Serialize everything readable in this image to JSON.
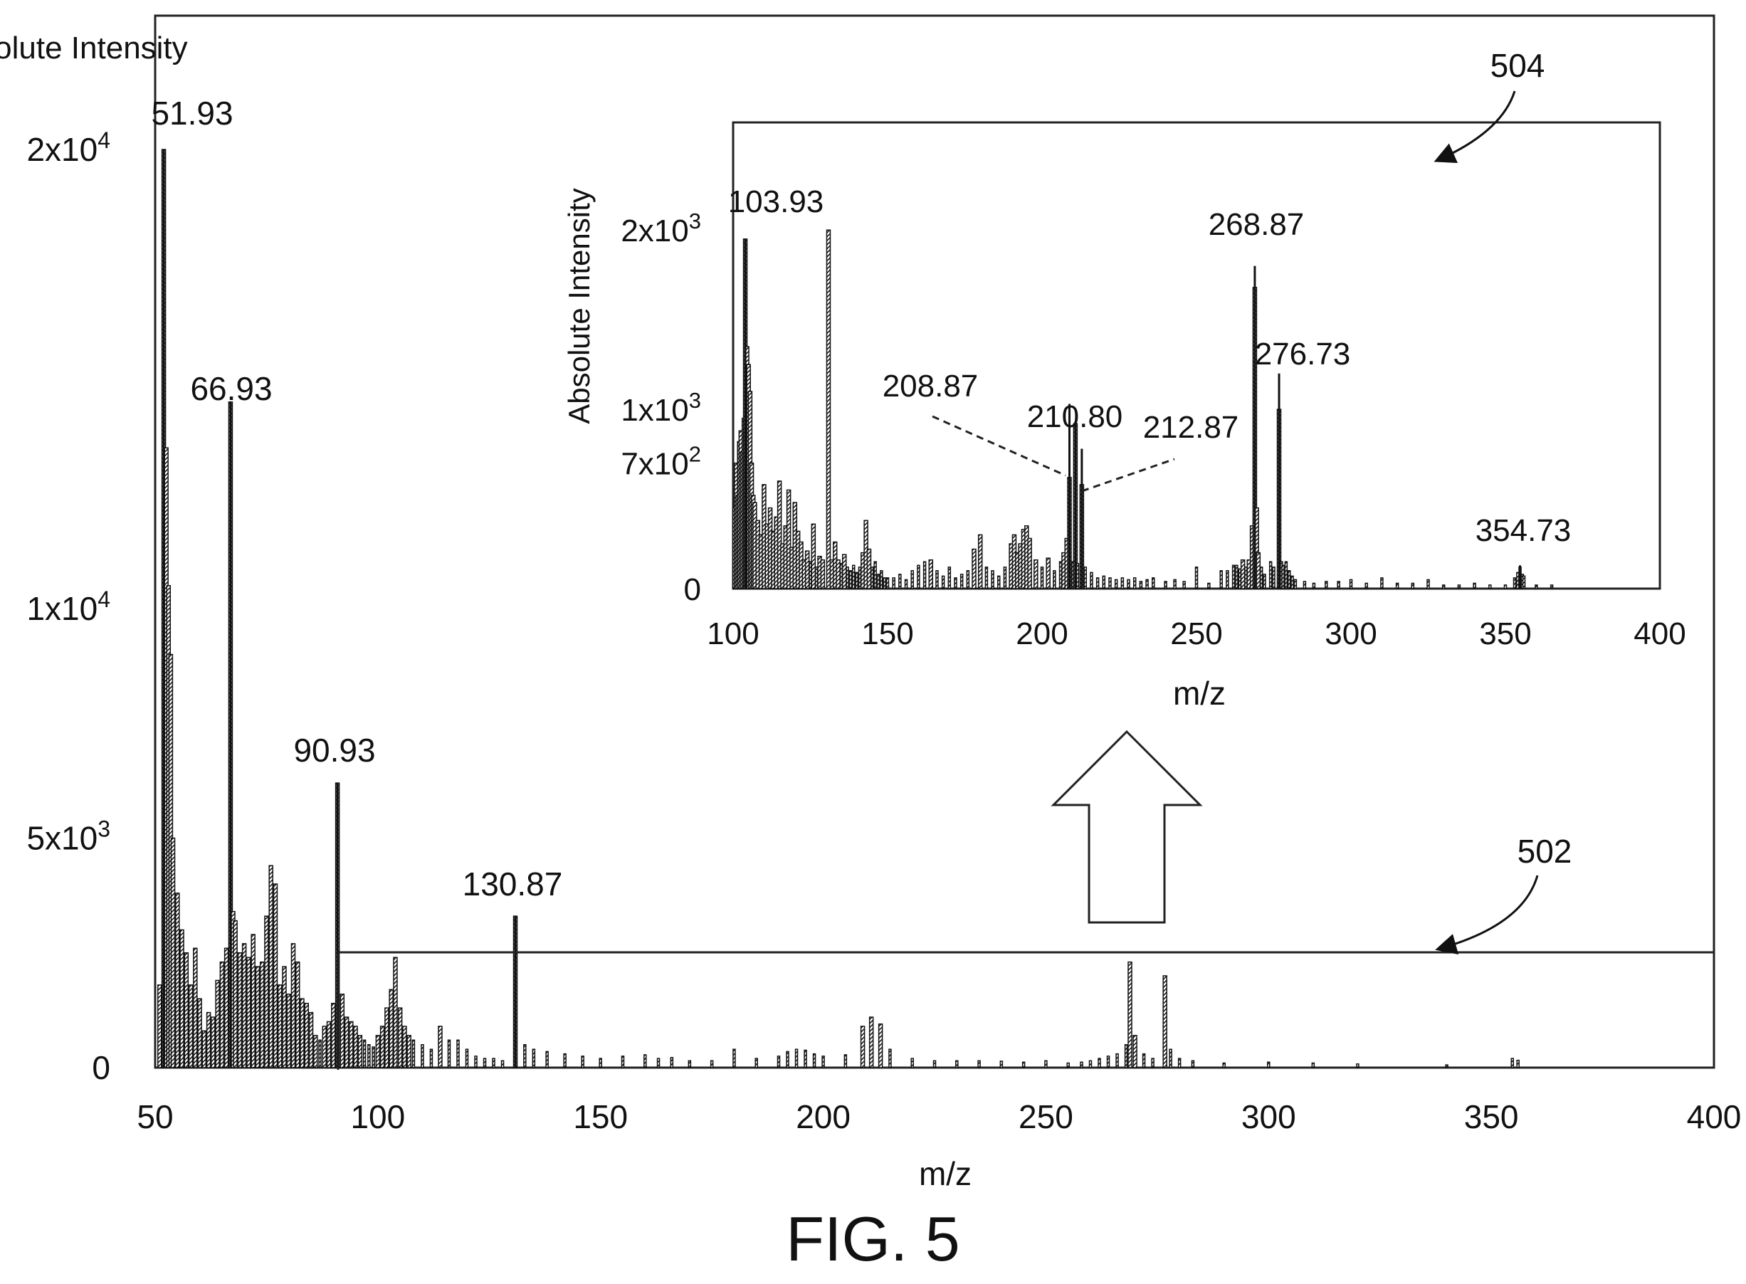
{
  "chart_data": [
    {
      "id": "main",
      "type": "bar",
      "xlabel": "m/z",
      "ylabel": "Absolute Intensity",
      "xlim": [
        50,
        400
      ],
      "ylim": [
        0,
        20000
      ],
      "xticks": [
        50,
        100,
        150,
        200,
        250,
        300,
        350,
        400
      ],
      "yticks": [
        {
          "value": 0,
          "label": "0"
        },
        {
          "value": 5000,
          "label": "5x10",
          "exp": "3"
        },
        {
          "value": 10000,
          "label": "1x10",
          "exp": "4"
        },
        {
          "value": 20000,
          "label": "2x10",
          "exp": "4"
        }
      ],
      "peak_labels": [
        {
          "x": 51.93,
          "y": 20000,
          "text": "51.93"
        },
        {
          "x": 66.93,
          "y": 14500,
          "text": "66.93"
        },
        {
          "x": 90.93,
          "y": 6200,
          "text": "90.93"
        },
        {
          "x": 130.87,
          "y": 3300,
          "text": "130.87"
        }
      ],
      "x": [
        51.0,
        51.93,
        52.5,
        53.0,
        53.5,
        54.0,
        55.0,
        56.0,
        57.0,
        58.0,
        59.0,
        60.0,
        61.0,
        62.0,
        63.0,
        64.0,
        65.0,
        66.0,
        66.93,
        67.5,
        68.0,
        69.0,
        70.0,
        71.0,
        72.0,
        73.0,
        74.0,
        75.0,
        76.0,
        77.0,
        78.0,
        79.0,
        80.0,
        81.0,
        82.0,
        83.0,
        84.0,
        85.0,
        86.0,
        87.0,
        88.0,
        89.0,
        90.0,
        90.93,
        92.0,
        93.0,
        94.0,
        95.0,
        96.0,
        97.0,
        98.0,
        99.0,
        100.0,
        101.0,
        102.0,
        103.0,
        103.93,
        105.0,
        106.0,
        107.0,
        108.0,
        110.0,
        112.0,
        114.0,
        116.0,
        118.0,
        120.0,
        122.0,
        124.0,
        126.0,
        128.0,
        130.87,
        133.0,
        135.0,
        138.0,
        142.0,
        146.0,
        150.0,
        155.0,
        160.0,
        163.0,
        166.0,
        170.0,
        175.0,
        180.0,
        185.0,
        190.0,
        192.0,
        194.0,
        196.0,
        198.0,
        200.0,
        205.0,
        208.87,
        210.8,
        212.87,
        215.0,
        220.0,
        225.0,
        230.0,
        235.0,
        240.0,
        245.0,
        250.0,
        255.0,
        258.0,
        260.0,
        262.0,
        264.0,
        266.0,
        268.0,
        268.87,
        270.0,
        272.0,
        274.0,
        276.73,
        278.0,
        280.0,
        283.0,
        290.0,
        300.0,
        310.0,
        320.0,
        340.0,
        354.73,
        356.0
      ],
      "values": [
        1800,
        20000,
        13500,
        10500,
        9000,
        5000,
        3800,
        3000,
        2500,
        1800,
        2600,
        1500,
        800,
        1200,
        1100,
        1900,
        2300,
        2600,
        14500,
        3400,
        3200,
        2500,
        2700,
        2400,
        2900,
        2200,
        2300,
        3300,
        4400,
        4000,
        1800,
        2200,
        1600,
        2700,
        2300,
        1500,
        1400,
        1200,
        700,
        600,
        900,
        1000,
        1400,
        6200,
        1600,
        1100,
        1000,
        900,
        700,
        600,
        500,
        450,
        700,
        900,
        1300,
        1700,
        2400,
        1300,
        900,
        700,
        600,
        500,
        400,
        900,
        600,
        600,
        400,
        250,
        200,
        200,
        150,
        3300,
        500,
        400,
        350,
        300,
        250,
        200,
        250,
        280,
        200,
        220,
        150,
        150,
        400,
        200,
        250,
        350,
        400,
        380,
        300,
        250,
        280,
        900,
        1100,
        950,
        400,
        200,
        150,
        150,
        150,
        140,
        120,
        150,
        100,
        120,
        150,
        200,
        250,
        300,
        500,
        2300,
        700,
        300,
        200,
        2000,
        400,
        200,
        150,
        100,
        120,
        100,
        80,
        60,
        200,
        160
      ]
    },
    {
      "id": "inset",
      "type": "bar",
      "xlabel": "m/z",
      "ylabel": "Absolute Intensity",
      "xlim": [
        100,
        400
      ],
      "ylim": [
        0,
        2100
      ],
      "xticks": [
        100,
        150,
        200,
        250,
        300,
        350,
        400
      ],
      "yticks": [
        {
          "value": 0,
          "label": "0"
        },
        {
          "value": 700,
          "label": "7x10",
          "exp": "2"
        },
        {
          "value": 1000,
          "label": "1x10",
          "exp": "3"
        },
        {
          "value": 2000,
          "label": "2x10",
          "exp": "3"
        }
      ],
      "peak_labels": [
        {
          "x": 103.93,
          "y": 1950,
          "text": "103.93"
        },
        {
          "x": 268.87,
          "y": 1800,
          "text": "268.87"
        },
        {
          "x": 276.73,
          "y": 1200,
          "text": "276.73"
        },
        {
          "x": 210.8,
          "y": 920,
          "text": "210.80"
        },
        {
          "x": 208.87,
          "y": 1030,
          "text": "208.87"
        },
        {
          "x": 212.87,
          "y": 780,
          "text": "212.87"
        },
        {
          "x": 354.73,
          "y": 130,
          "text": "354.73"
        }
      ],
      "x": [
        100.5,
        101.0,
        101.5,
        102.0,
        102.5,
        103.0,
        103.5,
        103.93,
        104.5,
        105.0,
        105.5,
        106.0,
        106.5,
        107.0,
        108.0,
        109.0,
        110.0,
        111.0,
        112.0,
        113.0,
        114.0,
        115.0,
        116.0,
        117.0,
        118.0,
        119.0,
        120.0,
        121.0,
        122.0,
        123.0,
        124.0,
        125.0,
        126.0,
        127.0,
        128.0,
        129.0,
        130.87,
        132.0,
        133.0,
        134.0,
        135.0,
        136.0,
        137.0,
        138.0,
        139.0,
        140.0,
        141.0,
        142.0,
        143.0,
        144.0,
        145.0,
        146.0,
        147.0,
        148.0,
        149.0,
        150.0,
        152.0,
        154.0,
        156.0,
        158.0,
        160.0,
        162.0,
        164.0,
        166.0,
        168.0,
        170.0,
        172.0,
        174.0,
        176.0,
        178.0,
        180.0,
        182.0,
        184.0,
        186.0,
        188.0,
        190.0,
        191.0,
        192.0,
        193.0,
        194.0,
        195.0,
        196.0,
        198.0,
        200.0,
        202.0,
        204.0,
        206.0,
        207.0,
        208.0,
        208.87,
        210.0,
        210.8,
        211.5,
        212.87,
        214.0,
        216.0,
        218.0,
        220.0,
        222.0,
        224.0,
        226.0,
        228.0,
        230.0,
        232.0,
        234.0,
        236.0,
        240.0,
        243.0,
        246.0,
        250.0,
        254.0,
        258.0,
        260.0,
        262.0,
        263.0,
        264.0,
        265.0,
        266.0,
        267.0,
        268.0,
        268.87,
        269.5,
        270.0,
        271.0,
        272.0,
        274.0,
        275.0,
        276.73,
        277.5,
        278.0,
        279.0,
        280.0,
        281.0,
        282.0,
        285.0,
        288.0,
        292.0,
        296.0,
        300.0,
        305.0,
        310.0,
        315.0,
        320.0,
        325.0,
        330.0,
        335.0,
        340.0,
        345.0,
        350.0,
        353.0,
        354.0,
        354.73,
        355.5,
        356.0,
        360.0,
        365.0
      ],
      "values": [
        450,
        700,
        520,
        820,
        880,
        760,
        950,
        1950,
        1350,
        1250,
        1100,
        700,
        520,
        480,
        380,
        300,
        580,
        360,
        450,
        320,
        400,
        600,
        250,
        350,
        550,
        230,
        480,
        320,
        260,
        160,
        210,
        150,
        360,
        120,
        180,
        160,
        2000,
        160,
        260,
        160,
        140,
        190,
        120,
        100,
        130,
        90,
        120,
        200,
        380,
        220,
        120,
        150,
        80,
        100,
        60,
        60,
        60,
        80,
        50,
        100,
        130,
        150,
        160,
        100,
        70,
        120,
        60,
        80,
        100,
        220,
        300,
        120,
        100,
        70,
        120,
        250,
        300,
        200,
        250,
        330,
        350,
        280,
        160,
        120,
        170,
        100,
        150,
        200,
        280,
        620,
        150,
        920,
        140,
        580,
        120,
        90,
        60,
        70,
        60,
        50,
        60,
        50,
        60,
        40,
        50,
        60,
        40,
        50,
        40,
        120,
        30,
        100,
        100,
        130,
        130,
        110,
        160,
        120,
        160,
        350,
        1680,
        450,
        200,
        120,
        80,
        150,
        120,
        1000,
        150,
        130,
        150,
        100,
        70,
        50,
        40,
        30,
        40,
        40,
        50,
        30,
        60,
        30,
        30,
        50,
        20,
        20,
        30,
        20,
        20,
        60,
        90,
        120,
        80,
        70,
        20,
        20
      ]
    }
  ],
  "callouts": {
    "inset_ref": "504",
    "region_ref": "502"
  },
  "figure_caption": "FIG. 5"
}
